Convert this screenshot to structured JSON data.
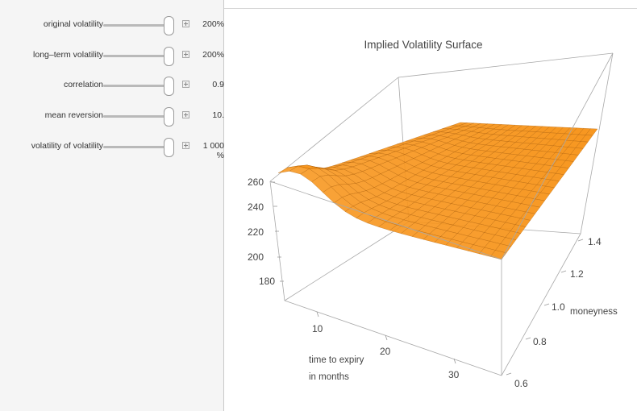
{
  "controls": [
    {
      "label": "original volatility",
      "value": "200%",
      "value2": ""
    },
    {
      "label": "long–term volatility",
      "value": "200%",
      "value2": ""
    },
    {
      "label": "correlation",
      "value": "0.9",
      "value2": ""
    },
    {
      "label": "mean reversion",
      "value": "10.",
      "value2": ""
    },
    {
      "label": "volatility of volatility",
      "value": "1 000",
      "value2": "%"
    }
  ],
  "plot": {
    "title": "Implied Volatility Surface",
    "z_ticks": [
      "260",
      "240",
      "220",
      "200",
      "180"
    ],
    "x_ticks": [
      "10",
      "20",
      "30"
    ],
    "x_label_line1": "time to expiry",
    "x_label_line2": "in months",
    "y_ticks": [
      "1.4",
      "1.2",
      "1.0",
      "0.8",
      "0.6"
    ],
    "y_label": "moneyness",
    "surface_color": "#f7961e",
    "mesh_color": "#a35600"
  }
}
